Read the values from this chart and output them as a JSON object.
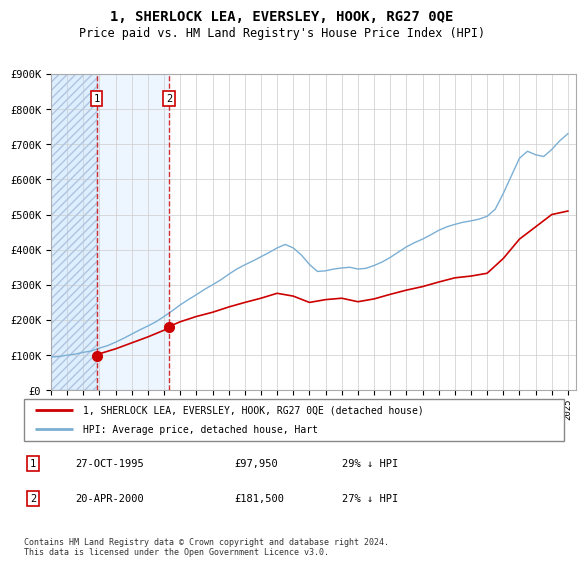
{
  "title": "1, SHERLOCK LEA, EVERSLEY, HOOK, RG27 0QE",
  "subtitle": "Price paid vs. HM Land Registry's House Price Index (HPI)",
  "ylim": [
    0,
    900000
  ],
  "yticks": [
    0,
    100000,
    200000,
    300000,
    400000,
    500000,
    600000,
    700000,
    800000,
    900000
  ],
  "ytick_labels": [
    "£0",
    "£100K",
    "£200K",
    "£300K",
    "£400K",
    "£500K",
    "£600K",
    "£700K",
    "£800K",
    "£900K"
  ],
  "sale_dates": [
    1995.83,
    2000.31
  ],
  "sale_prices": [
    97950,
    181500
  ],
  "sale_labels": [
    "1",
    "2"
  ],
  "sale_color": "#cc0000",
  "hpi_color": "#7bafd4",
  "shade_color": "#ddeeff",
  "grid_color": "#cccccc",
  "background_color": "#ffffff",
  "legend_entries": [
    "1, SHERLOCK LEA, EVERSLEY, HOOK, RG27 0QE (detached house)",
    "HPI: Average price, detached house, Hart"
  ],
  "table_rows": [
    [
      "1",
      "27-OCT-1995",
      "£97,950",
      "29% ↓ HPI"
    ],
    [
      "2",
      "20-APR-2000",
      "£181,500",
      "27% ↓ HPI"
    ]
  ],
  "footnote": "Contains HM Land Registry data © Crown copyright and database right 2024.\nThis data is licensed under the Open Government Licence v3.0.",
  "xmin": 1993.0,
  "xmax": 2025.5,
  "hpi_years": [
    1993.0,
    1993.5,
    1994.0,
    1994.5,
    1995.0,
    1995.5,
    1996.0,
    1996.5,
    1997.0,
    1997.5,
    1998.0,
    1998.5,
    1999.0,
    1999.5,
    2000.0,
    2000.5,
    2001.0,
    2001.5,
    2002.0,
    2002.5,
    2003.0,
    2003.5,
    2004.0,
    2004.5,
    2005.0,
    2005.5,
    2006.0,
    2006.5,
    2007.0,
    2007.5,
    2008.0,
    2008.5,
    2009.0,
    2009.5,
    2010.0,
    2010.5,
    2011.0,
    2011.5,
    2012.0,
    2012.5,
    2013.0,
    2013.5,
    2014.0,
    2014.5,
    2015.0,
    2015.5,
    2016.0,
    2016.5,
    2017.0,
    2017.5,
    2018.0,
    2018.5,
    2019.0,
    2019.5,
    2020.0,
    2020.5,
    2021.0,
    2021.5,
    2022.0,
    2022.5,
    2023.0,
    2023.5,
    2024.0,
    2024.5,
    2025.0
  ],
  "hpi_values": [
    95000,
    96000,
    100000,
    103000,
    108000,
    112000,
    120000,
    127000,
    137000,
    148000,
    160000,
    172000,
    183000,
    195000,
    210000,
    226000,
    243000,
    258000,
    272000,
    287000,
    300000,
    314000,
    330000,
    345000,
    357000,
    368000,
    380000,
    392000,
    405000,
    415000,
    405000,
    385000,
    358000,
    338000,
    340000,
    345000,
    348000,
    350000,
    345000,
    347000,
    355000,
    365000,
    378000,
    393000,
    408000,
    420000,
    430000,
    442000,
    455000,
    465000,
    472000,
    478000,
    482000,
    487000,
    495000,
    515000,
    560000,
    610000,
    660000,
    680000,
    670000,
    665000,
    685000,
    710000,
    730000
  ],
  "price_years": [
    1995.83,
    2000.31
  ],
  "price_values": [
    97950,
    181500
  ],
  "price_line_x": [
    1995.83,
    1996.0,
    1997.0,
    1998.0,
    1999.0,
    2000.0,
    2000.31,
    2001.0,
    2002.0,
    2003.0,
    2004.0,
    2005.0,
    2006.0,
    2007.0,
    2008.0,
    2009.0,
    2010.0,
    2011.0,
    2012.0,
    2013.0,
    2014.0,
    2015.0,
    2016.0,
    2017.0,
    2018.0,
    2019.0,
    2020.0,
    2021.0,
    2022.0,
    2023.0,
    2024.0,
    2025.0
  ],
  "price_line_y": [
    97950,
    104000,
    118000,
    135000,
    152000,
    171000,
    181500,
    195000,
    210000,
    222000,
    237000,
    250000,
    262000,
    276000,
    268000,
    250000,
    258000,
    262000,
    252000,
    260000,
    273000,
    285000,
    295000,
    308000,
    320000,
    325000,
    333000,
    375000,
    430000,
    465000,
    500000,
    510000
  ]
}
